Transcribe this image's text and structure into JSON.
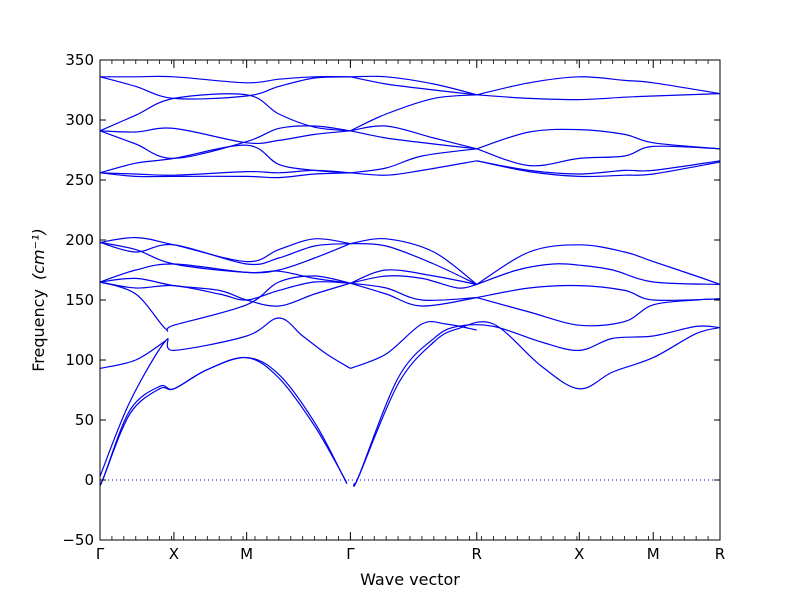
{
  "chart_data": {
    "type": "line",
    "xlabel": "Wave vector",
    "ylabel": "Frequency",
    "ylabel_unit": "(cm⁻¹)",
    "ylim": [
      -50,
      350
    ],
    "yticks": [
      -50,
      0,
      50,
      100,
      150,
      200,
      250,
      300,
      350
    ],
    "xlim": [
      0,
      5.2
    ],
    "high_symmetry_points": [
      {
        "label": "Γ",
        "x": 0.0
      },
      {
        "label": "X",
        "x": 0.62
      },
      {
        "label": "M",
        "x": 1.23
      },
      {
        "label": "Γ",
        "x": 2.1
      },
      {
        "label": "R",
        "x": 3.16
      },
      {
        "label": "X",
        "x": 4.02
      },
      {
        "label": "M",
        "x": 4.64
      },
      {
        "label": "R",
        "x": 5.2
      }
    ],
    "zero_line": true,
    "grid": false,
    "line_color": "#0000ee",
    "zero_line_color": "#0000ee",
    "bands": [
      {
        "values": [
          [
            0.0,
            -4
          ],
          [
            0.03,
            2
          ],
          [
            0.25,
            55
          ],
          [
            0.5,
            76
          ],
          [
            0.62,
            76
          ],
          [
            0.9,
            92
          ],
          [
            1.23,
            102
          ],
          [
            1.5,
            85
          ],
          [
            1.8,
            45
          ],
          [
            2.03,
            5
          ],
          [
            2.07,
            -3
          ]
        ]
      },
      {
        "values": [
          [
            0.0,
            -4
          ],
          [
            0.03,
            2
          ],
          [
            0.25,
            58
          ],
          [
            0.5,
            78
          ],
          [
            0.62,
            76
          ],
          [
            0.9,
            92
          ],
          [
            1.23,
            102
          ],
          [
            1.5,
            88
          ],
          [
            1.8,
            48
          ],
          [
            2.03,
            5
          ],
          [
            2.07,
            -3
          ]
        ]
      },
      {
        "values": [
          [
            0.0,
            3
          ],
          [
            0.25,
            65
          ],
          [
            0.55,
            116
          ],
          [
            0.62,
            108
          ],
          [
            1.23,
            120
          ],
          [
            1.5,
            135
          ],
          [
            1.7,
            120
          ],
          [
            1.9,
            105
          ],
          [
            2.1,
            93
          ]
        ]
      },
      {
        "values": [
          [
            2.13,
            -3
          ],
          [
            2.17,
            3
          ],
          [
            2.5,
            80
          ],
          [
            2.8,
            115
          ],
          [
            3.0,
            126
          ],
          [
            3.3,
            130
          ],
          [
            3.7,
            95
          ],
          [
            4.02,
            76
          ],
          [
            4.3,
            90
          ],
          [
            4.64,
            102
          ],
          [
            5.0,
            122
          ],
          [
            5.2,
            127
          ]
        ]
      },
      {
        "values": [
          [
            2.13,
            -3
          ],
          [
            2.17,
            3
          ],
          [
            2.5,
            85
          ],
          [
            2.8,
            118
          ],
          [
            3.0,
            128
          ],
          [
            3.3,
            128
          ],
          [
            3.7,
            115
          ],
          [
            4.02,
            108
          ],
          [
            4.3,
            118
          ],
          [
            4.64,
            120
          ],
          [
            5.0,
            128
          ],
          [
            5.2,
            127
          ]
        ]
      },
      {
        "values": [
          [
            2.1,
            93
          ],
          [
            2.4,
            105
          ],
          [
            2.7,
            130
          ],
          [
            2.9,
            130
          ],
          [
            3.16,
            125
          ]
        ]
      },
      {
        "values": [
          [
            0.0,
            93
          ],
          [
            0.3,
            100
          ],
          [
            0.55,
            116
          ]
        ]
      },
      {
        "values": [
          [
            0.0,
            165
          ],
          [
            0.3,
            155
          ],
          [
            0.55,
            126
          ],
          [
            0.62,
            129
          ],
          [
            1.23,
            146
          ],
          [
            1.5,
            165
          ],
          [
            1.8,
            170
          ],
          [
            2.1,
            164
          ]
        ]
      },
      {
        "values": [
          [
            0.0,
            165
          ],
          [
            0.3,
            160
          ],
          [
            0.62,
            162
          ],
          [
            1.0,
            155
          ],
          [
            1.23,
            150
          ],
          [
            1.5,
            158
          ],
          [
            1.8,
            165
          ],
          [
            2.1,
            164
          ]
        ]
      },
      {
        "values": [
          [
            0.0,
            165
          ],
          [
            0.3,
            168
          ],
          [
            0.62,
            162
          ],
          [
            1.0,
            158
          ],
          [
            1.23,
            150
          ],
          [
            1.5,
            145
          ],
          [
            1.8,
            155
          ],
          [
            2.1,
            164
          ]
        ]
      },
      {
        "values": [
          [
            0.0,
            165
          ],
          [
            0.3,
            175
          ],
          [
            0.62,
            180
          ],
          [
            1.23,
            173
          ],
          [
            1.5,
            174
          ],
          [
            1.8,
            168
          ],
          [
            2.1,
            164
          ]
        ]
      },
      {
        "values": [
          [
            2.1,
            164
          ],
          [
            2.4,
            160
          ],
          [
            2.7,
            150
          ],
          [
            3.16,
            152
          ]
        ]
      },
      {
        "values": [
          [
            2.1,
            164
          ],
          [
            2.4,
            155
          ],
          [
            2.7,
            145
          ],
          [
            3.16,
            152
          ]
        ]
      },
      {
        "values": [
          [
            2.1,
            164
          ],
          [
            2.4,
            170
          ],
          [
            2.7,
            168
          ],
          [
            3.0,
            160
          ],
          [
            3.16,
            163
          ]
        ]
      },
      {
        "values": [
          [
            2.1,
            164
          ],
          [
            2.4,
            175
          ],
          [
            2.8,
            170
          ],
          [
            3.16,
            163
          ]
        ]
      },
      {
        "values": [
          [
            3.16,
            163
          ],
          [
            3.5,
            175
          ],
          [
            3.8,
            180
          ],
          [
            4.02,
            179
          ],
          [
            4.3,
            175
          ],
          [
            4.64,
            165
          ],
          [
            5.2,
            163
          ]
        ]
      },
      {
        "values": [
          [
            3.16,
            152
          ],
          [
            3.6,
            160
          ],
          [
            4.02,
            162
          ],
          [
            4.4,
            158
          ],
          [
            4.64,
            150
          ],
          [
            5.2,
            151
          ]
        ]
      },
      {
        "values": [
          [
            3.16,
            152
          ],
          [
            3.6,
            140
          ],
          [
            4.02,
            129
          ],
          [
            4.4,
            132
          ],
          [
            4.64,
            146
          ],
          [
            5.0,
            150
          ],
          [
            5.2,
            151
          ]
        ]
      },
      {
        "values": [
          [
            0.0,
            198
          ],
          [
            0.3,
            202
          ],
          [
            0.62,
            196
          ],
          [
            1.23,
            182
          ],
          [
            1.5,
            192
          ],
          [
            1.8,
            201
          ],
          [
            2.1,
            197
          ]
        ]
      },
      {
        "values": [
          [
            0.0,
            198
          ],
          [
            0.3,
            190
          ],
          [
            0.62,
            196
          ],
          [
            1.23,
            180
          ],
          [
            1.5,
            185
          ],
          [
            1.8,
            195
          ],
          [
            2.1,
            197
          ]
        ]
      },
      {
        "values": [
          [
            0.0,
            198
          ],
          [
            0.3,
            192
          ],
          [
            0.62,
            180
          ],
          [
            1.23,
            173
          ],
          [
            1.5,
            175
          ],
          [
            1.8,
            185
          ],
          [
            2.1,
            197
          ]
        ]
      },
      {
        "values": [
          [
            2.1,
            197
          ],
          [
            2.4,
            201
          ],
          [
            2.8,
            190
          ],
          [
            3.16,
            163
          ]
        ]
      },
      {
        "values": [
          [
            2.1,
            197
          ],
          [
            2.4,
            195
          ],
          [
            2.8,
            180
          ],
          [
            3.16,
            163
          ]
        ]
      },
      {
        "values": [
          [
            3.16,
            163
          ],
          [
            3.6,
            190
          ],
          [
            4.02,
            196
          ],
          [
            4.4,
            190
          ],
          [
            4.64,
            182
          ],
          [
            5.0,
            170
          ],
          [
            5.2,
            163
          ]
        ]
      },
      {
        "values": [
          [
            0.0,
            256
          ],
          [
            0.3,
            253
          ],
          [
            0.62,
            253
          ],
          [
            1.23,
            253
          ],
          [
            1.5,
            252
          ],
          [
            1.8,
            255
          ],
          [
            2.1,
            256
          ]
        ]
      },
      {
        "values": [
          [
            0.0,
            256
          ],
          [
            0.3,
            255
          ],
          [
            0.62,
            254
          ],
          [
            1.23,
            257
          ],
          [
            1.5,
            256
          ],
          [
            1.8,
            258
          ],
          [
            2.1,
            256
          ]
        ]
      },
      {
        "values": [
          [
            0.0,
            256
          ],
          [
            0.3,
            264
          ],
          [
            0.62,
            268
          ],
          [
            1.23,
            279
          ],
          [
            1.5,
            263
          ],
          [
            1.8,
            258
          ],
          [
            2.1,
            256
          ]
        ]
      },
      {
        "values": [
          [
            2.1,
            256
          ],
          [
            2.4,
            254
          ],
          [
            2.7,
            258
          ],
          [
            3.16,
            266
          ]
        ]
      },
      {
        "values": [
          [
            2.1,
            256
          ],
          [
            2.4,
            260
          ],
          [
            2.7,
            270
          ],
          [
            3.16,
            276
          ]
        ]
      },
      {
        "values": [
          [
            3.16,
            266
          ],
          [
            3.6,
            257
          ],
          [
            4.02,
            253
          ],
          [
            4.4,
            254
          ],
          [
            4.64,
            255
          ],
          [
            5.2,
            265
          ]
        ]
      },
      {
        "values": [
          [
            3.16,
            266
          ],
          [
            3.6,
            258
          ],
          [
            4.02,
            255
          ],
          [
            4.4,
            258
          ],
          [
            4.64,
            258
          ],
          [
            5.2,
            266
          ]
        ]
      },
      {
        "values": [
          [
            3.16,
            276
          ],
          [
            3.6,
            262
          ],
          [
            4.02,
            268
          ],
          [
            4.4,
            270
          ],
          [
            4.64,
            278
          ],
          [
            5.2,
            276
          ]
        ]
      },
      {
        "values": [
          [
            0.0,
            291
          ],
          [
            0.3,
            290
          ],
          [
            0.62,
            293
          ],
          [
            1.23,
            281
          ],
          [
            1.5,
            283
          ],
          [
            1.8,
            288
          ],
          [
            2.1,
            291
          ]
        ]
      },
      {
        "values": [
          [
            0.0,
            291
          ],
          [
            0.3,
            280
          ],
          [
            0.62,
            268
          ],
          [
            1.23,
            282
          ],
          [
            1.5,
            293
          ],
          [
            1.8,
            295
          ],
          [
            2.1,
            291
          ]
        ]
      },
      {
        "values": [
          [
            2.1,
            291
          ],
          [
            2.4,
            295
          ],
          [
            2.8,
            285
          ],
          [
            3.16,
            276
          ]
        ]
      },
      {
        "values": [
          [
            2.1,
            291
          ],
          [
            2.4,
            285
          ],
          [
            2.8,
            280
          ],
          [
            3.16,
            276
          ]
        ]
      },
      {
        "values": [
          [
            3.16,
            276
          ],
          [
            3.6,
            290
          ],
          [
            4.02,
            292
          ],
          [
            4.4,
            288
          ],
          [
            4.64,
            281
          ],
          [
            5.2,
            276
          ]
        ]
      },
      {
        "values": [
          [
            0.0,
            336
          ],
          [
            0.3,
            336
          ],
          [
            0.62,
            336
          ],
          [
            1.23,
            331
          ],
          [
            1.5,
            334
          ],
          [
            1.8,
            336
          ],
          [
            2.1,
            336
          ]
        ]
      },
      {
        "values": [
          [
            0.0,
            336
          ],
          [
            0.3,
            328
          ],
          [
            0.62,
            318
          ],
          [
            1.23,
            320
          ],
          [
            1.5,
            328
          ],
          [
            1.8,
            335
          ],
          [
            2.1,
            336
          ]
        ]
      },
      {
        "values": [
          [
            0.0,
            291
          ],
          [
            0.3,
            304
          ],
          [
            0.62,
            318
          ],
          [
            1.23,
            321
          ],
          [
            1.5,
            305
          ],
          [
            1.8,
            294
          ],
          [
            2.1,
            291
          ]
        ]
      },
      {
        "values": [
          [
            2.1,
            336
          ],
          [
            2.4,
            336
          ],
          [
            2.8,
            330
          ],
          [
            3.16,
            321
          ]
        ]
      },
      {
        "values": [
          [
            2.1,
            336
          ],
          [
            2.4,
            330
          ],
          [
            2.8,
            325
          ],
          [
            3.16,
            321
          ]
        ]
      },
      {
        "values": [
          [
            2.1,
            291
          ],
          [
            2.4,
            305
          ],
          [
            2.8,
            318
          ],
          [
            3.16,
            321
          ]
        ]
      },
      {
        "values": [
          [
            3.16,
            321
          ],
          [
            3.6,
            331
          ],
          [
            4.02,
            336
          ],
          [
            4.4,
            333
          ],
          [
            4.64,
            331
          ],
          [
            5.2,
            322
          ]
        ]
      },
      {
        "values": [
          [
            3.16,
            321
          ],
          [
            3.6,
            318
          ],
          [
            4.02,
            317
          ],
          [
            4.4,
            319
          ],
          [
            4.64,
            320
          ],
          [
            5.2,
            322
          ]
        ]
      }
    ]
  }
}
